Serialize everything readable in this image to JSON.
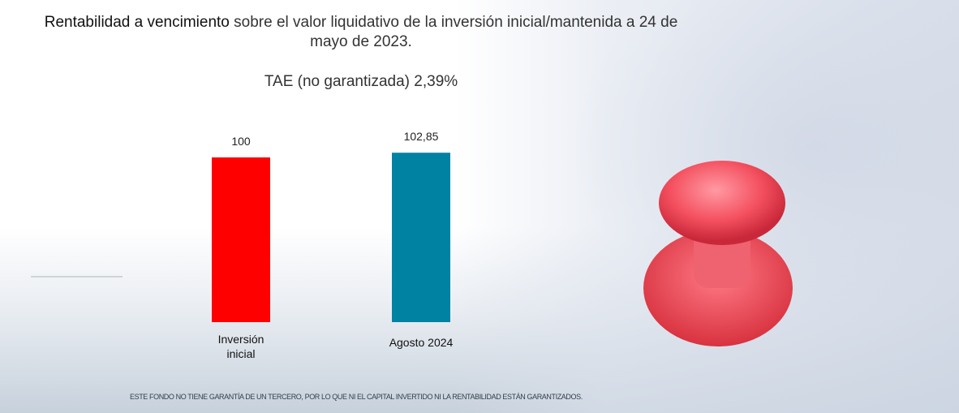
{
  "headline": {
    "bold": "Rentabilidad a vencimiento",
    "rest": " sobre el valor liquidativo de la inversión inicial/mantenida a 24 de mayo de 2023."
  },
  "tae_text": "TAE (no garantizada) 2,39%",
  "footnote": "ESTE FONDO NO TIENE GARANTÍA DE UN TERCERO, POR LO QUE NI EL CAPITAL INVERTIDO NI LA RENTABILIDAD ESTÁN GARANTIZADOS.",
  "chart_data": {
    "type": "bar",
    "categories": [
      "Inversión\ninicial",
      "Agosto 2024"
    ],
    "values": [
      100,
      102.85
    ],
    "value_labels": [
      "100",
      "102,85"
    ],
    "colors": [
      "#ff0000",
      "#0082a3"
    ],
    "title": "",
    "xlabel": "",
    "ylabel": "",
    "grid": false
  },
  "icons": [
    "calendar-background-image",
    "red-pushpin-icon"
  ]
}
